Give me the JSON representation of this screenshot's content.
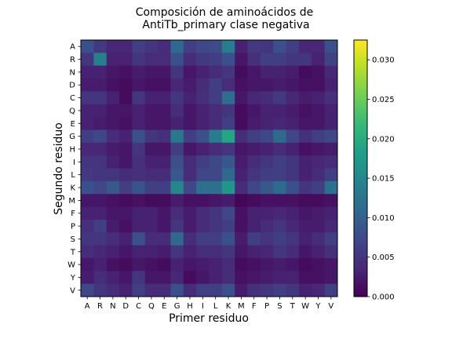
{
  "colors": {
    "viridis": [
      "#440154",
      "#482878",
      "#3e4989",
      "#31688e",
      "#26828e",
      "#1f9e89",
      "#35b779",
      "#6ece58",
      "#b5de2b",
      "#fde725"
    ]
  },
  "chart_data": {
    "type": "heatmap",
    "title_line1": "Composición de aminoácidos de",
    "title_line2": "AntiTb_primary clase negativa",
    "xlabel": "Primer residuo",
    "ylabel": "Segundo residuo",
    "x_categories": [
      "A",
      "R",
      "N",
      "D",
      "C",
      "Q",
      "E",
      "G",
      "H",
      "I",
      "L",
      "K",
      "M",
      "F",
      "P",
      "S",
      "T",
      "W",
      "Y",
      "V"
    ],
    "y_categories": [
      "A",
      "R",
      "N",
      "D",
      "C",
      "Q",
      "E",
      "G",
      "H",
      "I",
      "L",
      "K",
      "M",
      "F",
      "P",
      "S",
      "T",
      "W",
      "Y",
      "V"
    ],
    "colorbar": {
      "min": 0.0,
      "max": 0.0325,
      "ticks": [
        0.0,
        0.005,
        0.01,
        0.015,
        0.02,
        0.025,
        0.03
      ],
      "tick_labels": [
        "0.000",
        "0.005",
        "0.010",
        "0.015",
        "0.020",
        "0.025",
        "0.030"
      ]
    },
    "values": [
      [
        0.008,
        0.0055,
        0.0035,
        0.0035,
        0.006,
        0.005,
        0.004,
        0.011,
        0.006,
        0.007,
        0.0075,
        0.0135,
        0.003,
        0.0055,
        0.005,
        0.008,
        0.006,
        0.0035,
        0.0035,
        0.008
      ],
      [
        0.005,
        0.014,
        0.003,
        0.003,
        0.005,
        0.004,
        0.004,
        0.008,
        0.004,
        0.0055,
        0.006,
        0.008,
        0.002,
        0.0045,
        0.006,
        0.006,
        0.005,
        0.005,
        0.003,
        0.0065
      ],
      [
        0.003,
        0.003,
        0.002,
        0.0015,
        0.0025,
        0.002,
        0.002,
        0.005,
        0.002,
        0.003,
        0.004,
        0.005,
        0.001,
        0.002,
        0.003,
        0.003,
        0.0025,
        0.001,
        0.0015,
        0.0035
      ],
      [
        0.0025,
        0.0025,
        0.0015,
        0.001,
        0.002,
        0.0015,
        0.0015,
        0.0035,
        0.0025,
        0.004,
        0.006,
        0.004,
        0.0015,
        0.002,
        0.002,
        0.0025,
        0.002,
        0.0015,
        0.0015,
        0.003
      ],
      [
        0.005,
        0.005,
        0.003,
        0.001,
        0.005,
        0.003,
        0.003,
        0.005,
        0.003,
        0.0045,
        0.006,
        0.0115,
        0.002,
        0.0035,
        0.004,
        0.0055,
        0.0035,
        0.0025,
        0.003,
        0.0045
      ],
      [
        0.003,
        0.003,
        0.002,
        0.002,
        0.003,
        0.002,
        0.002,
        0.004,
        0.002,
        0.003,
        0.004,
        0.005,
        0.001,
        0.002,
        0.003,
        0.003,
        0.0025,
        0.0015,
        0.002,
        0.003
      ],
      [
        0.003,
        0.0025,
        0.002,
        0.0015,
        0.003,
        0.002,
        0.002,
        0.003,
        0.002,
        0.003,
        0.004,
        0.006,
        0.001,
        0.0025,
        0.003,
        0.0035,
        0.003,
        0.002,
        0.002,
        0.003
      ],
      [
        0.006,
        0.007,
        0.004,
        0.003,
        0.008,
        0.005,
        0.0045,
        0.013,
        0.006,
        0.008,
        0.0135,
        0.019,
        0.004,
        0.006,
        0.007,
        0.011,
        0.007,
        0.0045,
        0.006,
        0.007
      ],
      [
        0.0035,
        0.0035,
        0.0025,
        0.002,
        0.005,
        0.002,
        0.002,
        0.006,
        0.002,
        0.003,
        0.004,
        0.005,
        0.002,
        0.0025,
        0.003,
        0.004,
        0.003,
        0.0015,
        0.002,
        0.0025
      ],
      [
        0.005,
        0.005,
        0.003,
        0.002,
        0.0045,
        0.003,
        0.003,
        0.008,
        0.004,
        0.006,
        0.007,
        0.009,
        0.0025,
        0.004,
        0.005,
        0.006,
        0.005,
        0.003,
        0.0035,
        0.004
      ],
      [
        0.0055,
        0.005,
        0.005,
        0.004,
        0.0045,
        0.004,
        0.004,
        0.009,
        0.004,
        0.007,
        0.007,
        0.011,
        0.003,
        0.005,
        0.006,
        0.006,
        0.005,
        0.003,
        0.004,
        0.006
      ],
      [
        0.008,
        0.007,
        0.009,
        0.006,
        0.0085,
        0.006,
        0.006,
        0.015,
        0.007,
        0.012,
        0.012,
        0.017,
        0.004,
        0.007,
        0.009,
        0.011,
        0.008,
        0.005,
        0.006,
        0.012
      ],
      [
        0.002,
        0.002,
        0.0015,
        0.001,
        0.0015,
        0.001,
        0.001,
        0.0025,
        0.0015,
        0.0015,
        0.002,
        0.0025,
        0.0005,
        0.001,
        0.0015,
        0.0015,
        0.0015,
        0.001,
        0.001,
        0.0015
      ],
      [
        0.003,
        0.003,
        0.002,
        0.002,
        0.003,
        0.003,
        0.002,
        0.004,
        0.0025,
        0.004,
        0.005,
        0.007,
        0.0015,
        0.003,
        0.003,
        0.0035,
        0.003,
        0.002,
        0.0025,
        0.003
      ],
      [
        0.0045,
        0.006,
        0.0025,
        0.0015,
        0.003,
        0.003,
        0.002,
        0.005,
        0.0025,
        0.004,
        0.005,
        0.006,
        0.0015,
        0.003,
        0.004,
        0.005,
        0.0035,
        0.0025,
        0.0025,
        0.0035
      ],
      [
        0.005,
        0.005,
        0.004,
        0.003,
        0.008,
        0.004,
        0.004,
        0.011,
        0.004,
        0.006,
        0.006,
        0.008,
        0.0025,
        0.006,
        0.005,
        0.006,
        0.005,
        0.003,
        0.004,
        0.006
      ],
      [
        0.004,
        0.0035,
        0.003,
        0.002,
        0.003,
        0.003,
        0.0025,
        0.005,
        0.003,
        0.004,
        0.004,
        0.005,
        0.002,
        0.003,
        0.0035,
        0.005,
        0.004,
        0.002,
        0.003,
        0.0045
      ],
      [
        0.002,
        0.003,
        0.0015,
        0.001,
        0.002,
        0.0015,
        0.001,
        0.003,
        0.002,
        0.0025,
        0.003,
        0.004,
        0.001,
        0.0015,
        0.002,
        0.0025,
        0.002,
        0.001,
        0.0015,
        0.002
      ],
      [
        0.0025,
        0.004,
        0.003,
        0.002,
        0.005,
        0.002,
        0.002,
        0.0035,
        0.001,
        0.002,
        0.003,
        0.004,
        0.0015,
        0.002,
        0.0025,
        0.003,
        0.003,
        0.0015,
        0.0015,
        0.002
      ],
      [
        0.007,
        0.005,
        0.004,
        0.003,
        0.006,
        0.004,
        0.004,
        0.008,
        0.004,
        0.006,
        0.006,
        0.008,
        0.0025,
        0.0045,
        0.005,
        0.006,
        0.005,
        0.003,
        0.0035,
        0.006
      ]
    ]
  }
}
